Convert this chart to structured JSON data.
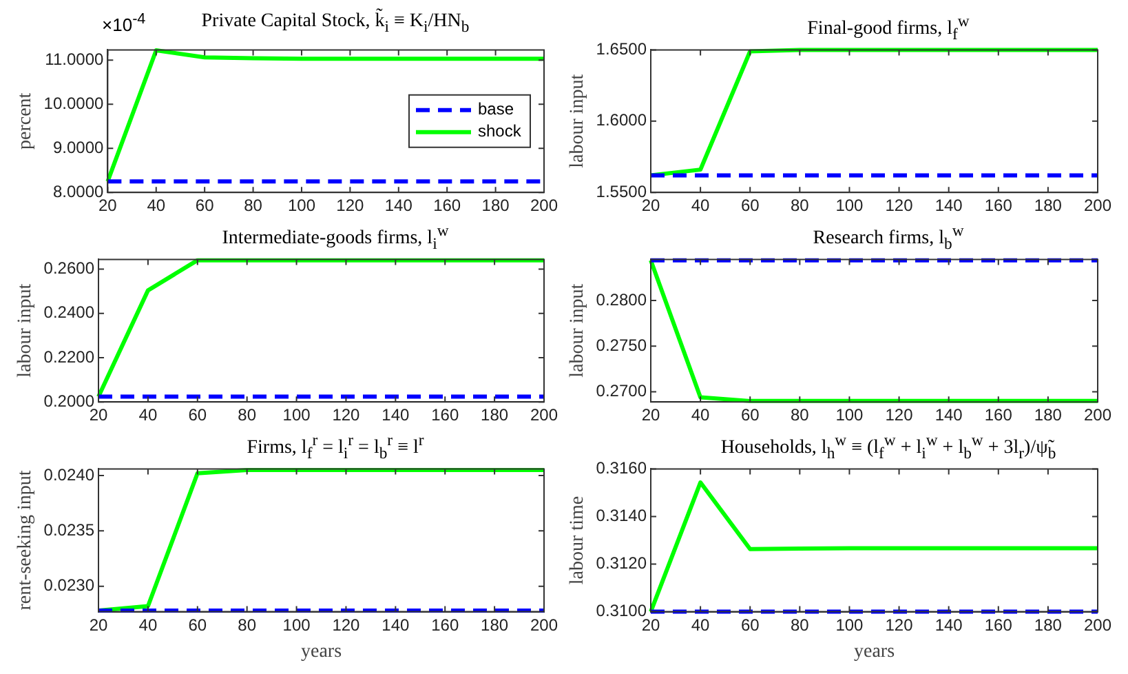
{
  "chart_data": [
    {
      "type": "line",
      "title": "Private Capital Stock, k̃$_{i}$ ≡ K$_{i}$/HN$_{b}$",
      "ylabel": "percent",
      "annotations": [
        "×10$^{-4}$"
      ],
      "x": [
        20,
        40,
        60,
        80,
        100,
        120,
        140,
        160,
        180,
        200
      ],
      "xlim": [
        20,
        200
      ],
      "xticks": [
        20,
        40,
        60,
        80,
        100,
        120,
        140,
        160,
        180,
        200
      ],
      "ylim": [
        8,
        11.23
      ],
      "yticks": [
        {
          "value": 8,
          "label": "8.0000"
        },
        {
          "value": 9,
          "label": "9.0000"
        },
        {
          "value": 10,
          "label": "10.0000"
        },
        {
          "value": 11,
          "label": "11.0000"
        }
      ],
      "grid": false,
      "legend": "right",
      "marker": "none",
      "series": [
        {
          "name": "base",
          "color": "#0000ff",
          "line_style": "dashed",
          "values": [
            8.25,
            8.25,
            8.25,
            8.25,
            8.25,
            8.25,
            8.25,
            8.25,
            8.25,
            8.25
          ]
        },
        {
          "name": "shock",
          "color": "#00ff00",
          "line_style": "solid",
          "values": [
            8.25,
            11.22,
            11.06,
            11.04,
            11.03,
            11.03,
            11.03,
            11.03,
            11.03,
            11.03
          ]
        }
      ]
    },
    {
      "type": "line",
      "title": "Final-good firms, l$_{f}$$^{w}$",
      "ylabel": "labour input",
      "x": [
        20,
        40,
        60,
        80,
        100,
        120,
        140,
        160,
        180,
        200
      ],
      "xlim": [
        20,
        200
      ],
      "xticks": [
        20,
        40,
        60,
        80,
        100,
        120,
        140,
        160,
        180,
        200
      ],
      "ylim": [
        1.55,
        1.65
      ],
      "yticks": [
        {
          "value": 1.55,
          "label": "1.5500"
        },
        {
          "value": 1.6,
          "label": "1.6000"
        },
        {
          "value": 1.65,
          "label": "1.6500"
        }
      ],
      "grid": false,
      "legend": false,
      "marker": "none",
      "series": [
        {
          "color": "#0000ff",
          "line_style": "dashed",
          "values": [
            1.562,
            1.562,
            1.562,
            1.562,
            1.562,
            1.562,
            1.562,
            1.562,
            1.562,
            1.562
          ]
        },
        {
          "color": "#00ff00",
          "line_style": "solid",
          "values": [
            1.562,
            1.566,
            1.649,
            1.65,
            1.65,
            1.65,
            1.65,
            1.65,
            1.65,
            1.65
          ]
        }
      ]
    },
    {
      "type": "line",
      "title": "Intermediate-goods firms, l$_{i}$$^{w}$",
      "ylabel": "labour input",
      "x": [
        20,
        40,
        60,
        80,
        100,
        120,
        140,
        160,
        180,
        200
      ],
      "xlim": [
        20,
        200
      ],
      "xticks": [
        20,
        40,
        60,
        80,
        100,
        120,
        140,
        160,
        180,
        200
      ],
      "ylim": [
        0.2,
        0.2644
      ],
      "yticks": [
        {
          "value": 0.2,
          "label": "0.2000"
        },
        {
          "value": 0.22,
          "label": "0.2200"
        },
        {
          "value": 0.24,
          "label": "0.2400"
        },
        {
          "value": 0.26,
          "label": "0.2600"
        }
      ],
      "grid": false,
      "legend": false,
      "marker": "none",
      "series": [
        {
          "color": "#0000ff",
          "line_style": "dashed",
          "values": [
            0.2024,
            0.2024,
            0.2024,
            0.2024,
            0.2024,
            0.2024,
            0.2024,
            0.2024,
            0.2024,
            0.2024
          ]
        },
        {
          "color": "#00ff00",
          "line_style": "solid",
          "values": [
            0.2024,
            0.2504,
            0.264,
            0.264,
            0.264,
            0.264,
            0.264,
            0.264,
            0.264,
            0.264
          ]
        }
      ]
    },
    {
      "type": "line",
      "title": "Research firms, l$_{b}$$^{w}$",
      "ylabel": "labour input",
      "x": [
        20,
        40,
        60,
        80,
        100,
        120,
        140,
        160,
        180,
        200
      ],
      "xlim": [
        20,
        200
      ],
      "xticks": [
        20,
        40,
        60,
        80,
        100,
        120,
        140,
        160,
        180,
        200
      ],
      "ylim": [
        0.2689,
        0.2845
      ],
      "yticks": [
        {
          "value": 0.27,
          "label": "0.2700"
        },
        {
          "value": 0.275,
          "label": "0.2750"
        },
        {
          "value": 0.28,
          "label": "0.2800"
        }
      ],
      "grid": false,
      "legend": false,
      "marker": "none",
      "series": [
        {
          "color": "#0000ff",
          "line_style": "dashed",
          "values": [
            0.2844,
            0.2844,
            0.2844,
            0.2844,
            0.2844,
            0.2844,
            0.2844,
            0.2844,
            0.2844,
            0.2844
          ]
        },
        {
          "color": "#00ff00",
          "line_style": "solid",
          "values": [
            0.2844,
            0.2694,
            0.269,
            0.269,
            0.269,
            0.269,
            0.269,
            0.269,
            0.269,
            0.269
          ]
        }
      ]
    },
    {
      "type": "line",
      "title": "Firms, l$_{f}$$^{r}$ = l$_{i}$$^{r}$ = l$_{b}$$^{r}$ ≡ l$^{r}$",
      "ylabel": "rent-seeking input",
      "xlabel": "years",
      "x": [
        20,
        40,
        60,
        80,
        100,
        120,
        140,
        160,
        180,
        200
      ],
      "xlim": [
        20,
        200
      ],
      "xticks": [
        20,
        40,
        60,
        80,
        100,
        120,
        140,
        160,
        180,
        200
      ],
      "ylim": [
        0.02277,
        0.02406
      ],
      "yticks": [
        {
          "value": 0.023,
          "label": "0.0230"
        },
        {
          "value": 0.0235,
          "label": "0.0235"
        },
        {
          "value": 0.024,
          "label": "0.0240"
        }
      ],
      "grid": false,
      "legend": false,
      "marker": "none",
      "series": [
        {
          "color": "#0000ff",
          "line_style": "dashed",
          "values": [
            0.02278,
            0.02278,
            0.02278,
            0.02278,
            0.02278,
            0.02278,
            0.02278,
            0.02278,
            0.02278,
            0.02278
          ]
        },
        {
          "color": "#00ff00",
          "line_style": "solid",
          "values": [
            0.02278,
            0.02282,
            0.02402,
            0.02405,
            0.02405,
            0.02405,
            0.02405,
            0.02405,
            0.02405,
            0.02405
          ]
        }
      ]
    },
    {
      "type": "line",
      "title": "Households, l$_{h}$$^{w}$ ≡ (l$_{f}$$^{w}$ + l$_{i}$$^{w}$ + l$_{b}$$^{w}$ + 3l$_{r}$)/ψ̃$_{b}$",
      "ylabel": "labour time",
      "xlabel": "years",
      "x": [
        20,
        40,
        60,
        80,
        100,
        120,
        140,
        160,
        180,
        200
      ],
      "xlim": [
        20,
        200
      ],
      "xticks": [
        20,
        40,
        60,
        80,
        100,
        120,
        140,
        160,
        180,
        200
      ],
      "ylim": [
        0.31,
        0.316
      ],
      "yticks": [
        {
          "value": 0.31,
          "label": "0.3100"
        },
        {
          "value": 0.312,
          "label": "0.3120"
        },
        {
          "value": 0.314,
          "label": "0.3140"
        },
        {
          "value": 0.316,
          "label": "0.3160"
        }
      ],
      "grid": false,
      "legend": false,
      "marker": "none",
      "series": [
        {
          "color": "#0000ff",
          "line_style": "dashed",
          "values": [
            0.31,
            0.31,
            0.31,
            0.31,
            0.31,
            0.31,
            0.31,
            0.31,
            0.31,
            0.31
          ]
        },
        {
          "color": "#00ff00",
          "line_style": "solid",
          "values": [
            0.31,
            0.31543,
            0.31263,
            0.31265,
            0.31267,
            0.31267,
            0.31267,
            0.31267,
            0.31267,
            0.31267
          ]
        }
      ]
    }
  ]
}
